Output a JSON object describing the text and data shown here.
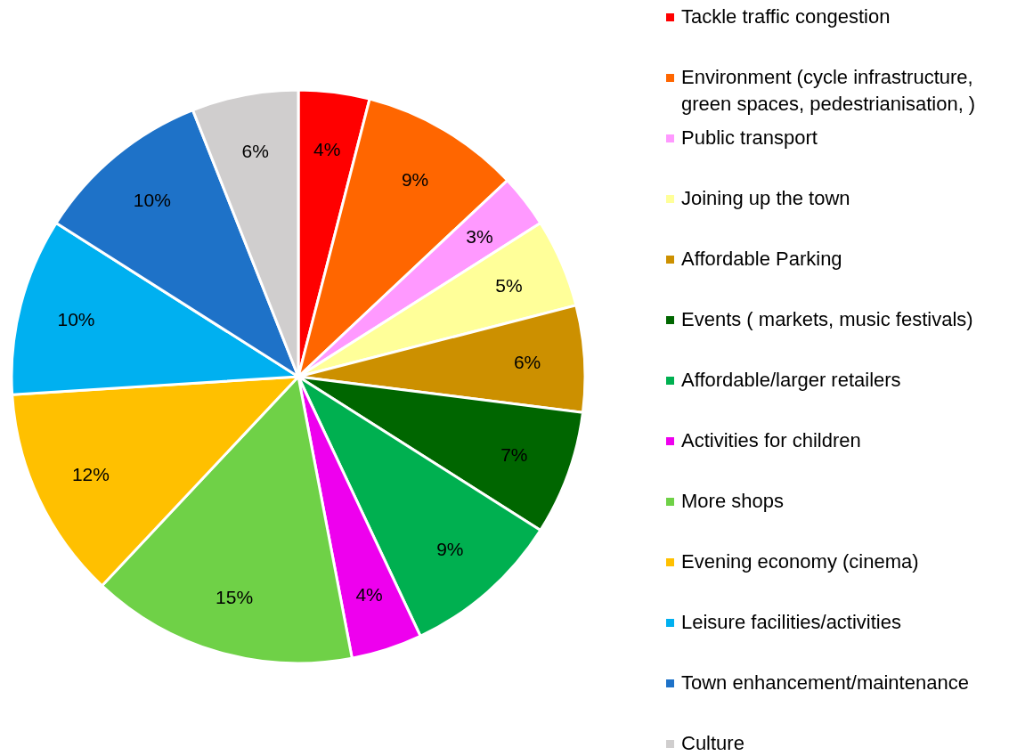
{
  "chart_data": {
    "type": "pie",
    "categories": [
      "Tackle traffic congestion",
      "Environment (cycle infrastructure, green spaces, pedestrianisation, )",
      "Public transport",
      "Joining up the town",
      "Affordable Parking",
      "Events ( markets, music festivals)",
      "Affordable/larger retailers",
      "Activities for children",
      "More shops",
      "Evening economy (cinema)",
      "Leisure facilities/activities",
      "Town enhancement/maintenance",
      "Culture"
    ],
    "values": [
      4,
      9,
      3,
      5,
      6,
      7,
      9,
      4,
      15,
      12,
      10,
      10,
      6
    ],
    "value_labels": [
      "4%",
      "9%",
      "3%",
      "5%",
      "6%",
      "7%",
      "9%",
      "4%",
      "15%",
      "12%",
      "10%",
      "10%",
      "6%"
    ],
    "colors": [
      "#ff0000",
      "#ff6600",
      "#ff99ff",
      "#ffff99",
      "#cc9000",
      "#006600",
      "#00b050",
      "#ee00ee",
      "#6fd147",
      "#ffc000",
      "#00b0f0",
      "#1e72c8",
      "#d0cece"
    ],
    "legend": "right"
  }
}
